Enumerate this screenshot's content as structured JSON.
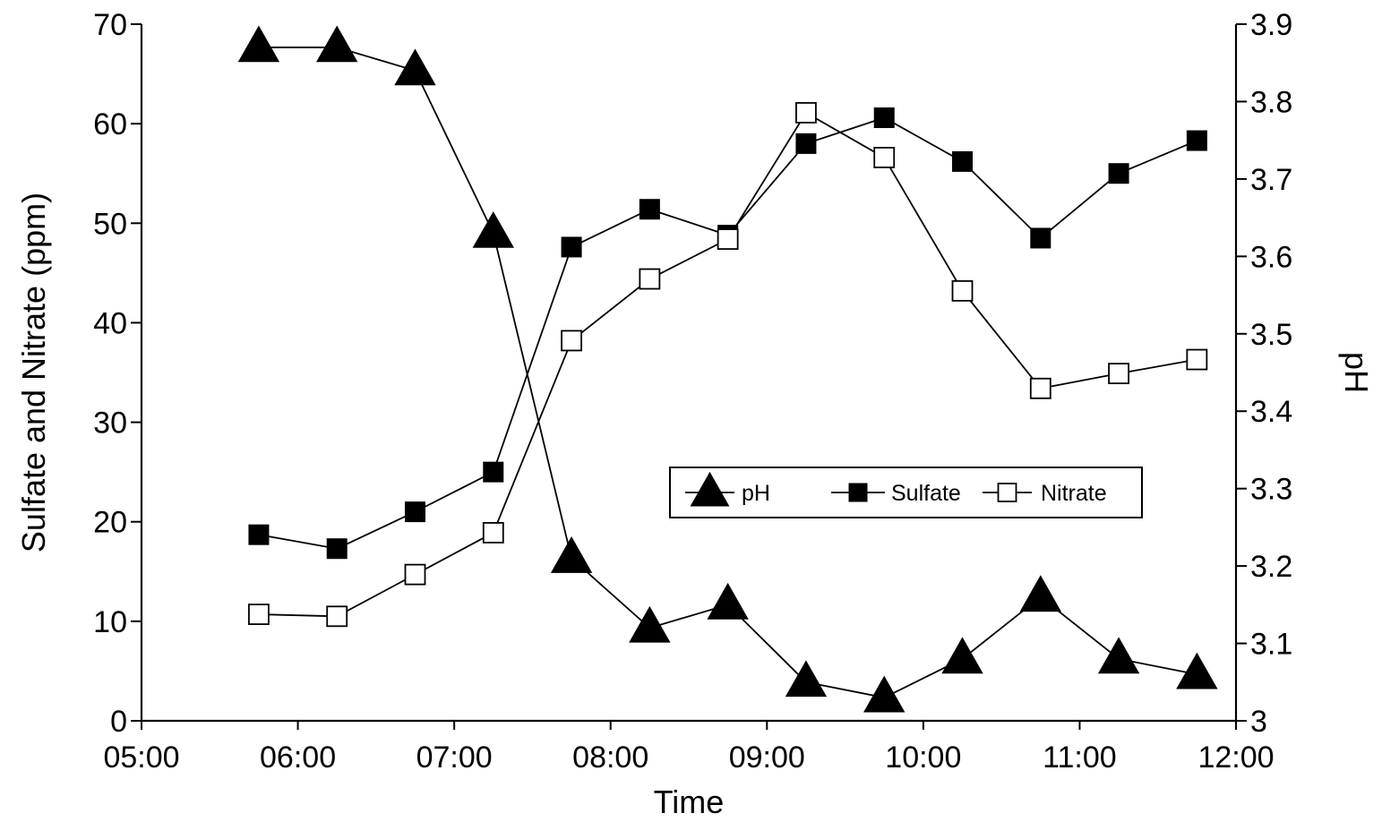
{
  "chart_data": {
    "type": "line",
    "title": "",
    "xlabel": "Time",
    "ylabel_left": "Sulfate and Nitrate (ppm)",
    "ylabel_right": "pH",
    "x_ticks": [
      "05:00",
      "06:00",
      "07:00",
      "08:00",
      "09:00",
      "10:00",
      "11:00",
      "12:00"
    ],
    "xlim": [
      "05:00",
      "12:00"
    ],
    "ylim_left": [
      0,
      70
    ],
    "y_ticks_left": [
      "0",
      "10",
      "20",
      "30",
      "40",
      "50",
      "60",
      "70"
    ],
    "ylim_right": [
      3.0,
      3.9
    ],
    "y_ticks_right": [
      "3",
      "3.1",
      "3.2",
      "3.3",
      "3.4",
      "3.5",
      "3.6",
      "3.7",
      "3.8",
      "3.9"
    ],
    "grid": false,
    "legend_position": "center-right",
    "x": [
      "05:45",
      "06:15",
      "06:45",
      "07:15",
      "07:45",
      "08:15",
      "08:45",
      "09:15",
      "09:45",
      "10:15",
      "10:45",
      "11:15",
      "11:45"
    ],
    "series": [
      {
        "name": "pH",
        "axis": "right",
        "marker": "filled-triangle",
        "values": [
          3.87,
          3.87,
          3.84,
          3.63,
          3.21,
          3.12,
          3.15,
          3.05,
          3.03,
          3.08,
          3.16,
          3.08,
          3.06
        ]
      },
      {
        "name": "Sulfate",
        "axis": "left",
        "marker": "filled-square",
        "values": [
          18.7,
          17.3,
          21.0,
          25.0,
          47.6,
          51.4,
          48.8,
          58.0,
          60.6,
          56.2,
          48.5,
          55.0,
          58.3
        ]
      },
      {
        "name": "Nitrate",
        "axis": "left",
        "marker": "open-square",
        "values": [
          10.7,
          10.5,
          14.7,
          18.9,
          38.2,
          44.4,
          48.4,
          61.1,
          56.6,
          43.2,
          33.4,
          34.9,
          36.3
        ]
      }
    ]
  }
}
